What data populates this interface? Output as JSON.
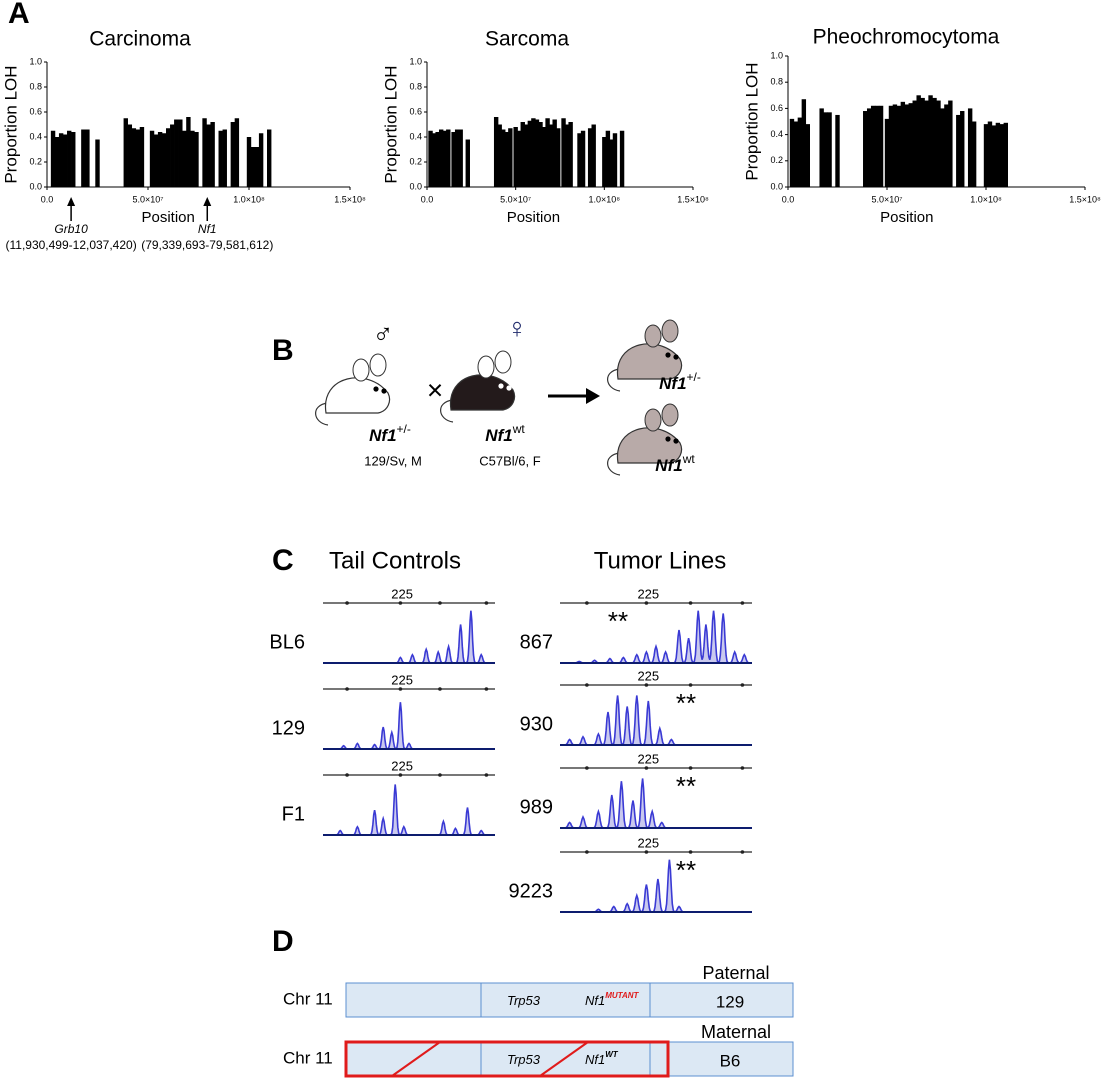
{
  "panel_labels": [
    "A",
    "B",
    "C",
    "D"
  ],
  "chart_data": [
    {
      "type": "bar",
      "title": "Carcinoma",
      "xlabel": "Position",
      "ylabel": "Proportion LOH",
      "color": "#000000",
      "x": [
        3000000,
        5000000,
        7000000,
        9000000,
        11000000,
        13000000,
        18000000,
        20000000,
        25000000,
        39000000,
        41000000,
        43000000,
        45000000,
        47000000,
        52000000,
        54000000,
        56000000,
        58000000,
        60000000,
        62000000,
        64000000,
        66000000,
        68000000,
        70000000,
        72000000,
        74000000,
        78000000,
        80000000,
        82000000,
        86000000,
        88000000,
        92000000,
        94000000,
        100000000,
        102000000,
        104000000,
        106000000,
        110000000
      ],
      "values": [
        0.45,
        0.4,
        0.43,
        0.42,
        0.45,
        0.44,
        0.46,
        0.46,
        0.38,
        0.55,
        0.5,
        0.47,
        0.46,
        0.48,
        0.45,
        0.42,
        0.44,
        0.43,
        0.47,
        0.5,
        0.54,
        0.54,
        0.45,
        0.56,
        0.45,
        0.44,
        0.55,
        0.5,
        0.52,
        0.45,
        0.46,
        0.52,
        0.55,
        0.4,
        0.32,
        0.32,
        0.43,
        0.46
      ],
      "xlim": [
        0,
        150000000
      ],
      "xticks": [
        {
          "value": 0,
          "label": "0.0"
        },
        {
          "value": 50000000,
          "label": "5.0×10⁷"
        },
        {
          "value": 100000000,
          "label": "1.0×10⁸"
        },
        {
          "value": 150000000,
          "label": "1.5×10⁸"
        }
      ],
      "ylim": [
        0,
        1
      ],
      "yticks": [
        {
          "value": 0,
          "label": "0.0"
        },
        0.2,
        0.4,
        0.6,
        0.8,
        {
          "value": 1,
          "label": "1.0"
        }
      ],
      "annotations": [
        {
          "text": "Grb10",
          "detail": "(11,930,499-12,037,420)",
          "x": 11930499
        },
        {
          "text": "Nf1",
          "detail": "(79,339,693-79,581,612)",
          "x": 79339693
        }
      ]
    },
    {
      "type": "bar",
      "title": "Sarcoma",
      "xlabel": "Position",
      "ylabel": "Proportion LOH",
      "color": "#000000",
      "x": [
        2000000,
        4000000,
        6000000,
        8000000,
        10000000,
        12000000,
        15000000,
        17000000,
        19000000,
        23000000,
        39000000,
        41000000,
        43000000,
        45000000,
        47000000,
        50000000,
        52000000,
        54000000,
        56000000,
        58000000,
        60000000,
        62000000,
        64000000,
        66000000,
        68000000,
        70000000,
        72000000,
        74000000,
        77000000,
        79000000,
        81000000,
        86000000,
        88000000,
        92000000,
        94000000,
        100000000,
        102000000,
        104000000,
        106000000,
        110000000
      ],
      "values": [
        0.45,
        0.43,
        0.44,
        0.46,
        0.45,
        0.46,
        0.44,
        0.46,
        0.46,
        0.38,
        0.56,
        0.5,
        0.46,
        0.44,
        0.47,
        0.48,
        0.45,
        0.52,
        0.5,
        0.53,
        0.55,
        0.54,
        0.52,
        0.48,
        0.55,
        0.5,
        0.54,
        0.47,
        0.55,
        0.5,
        0.52,
        0.43,
        0.45,
        0.47,
        0.5,
        0.4,
        0.45,
        0.38,
        0.43,
        0.45
      ],
      "xlim": [
        0,
        150000000
      ],
      "xticks": [
        {
          "value": 0,
          "label": "0.0"
        },
        {
          "value": 50000000,
          "label": "5.0×10⁷"
        },
        {
          "value": 100000000,
          "label": "1.0×10⁸"
        },
        {
          "value": 150000000,
          "label": "1.5×10⁸"
        }
      ],
      "ylim": [
        0,
        1
      ],
      "yticks": [
        {
          "value": 0,
          "label": "0.0"
        },
        0.2,
        0.4,
        0.6,
        0.8,
        {
          "value": 1,
          "label": "1.0"
        }
      ]
    },
    {
      "type": "bar",
      "title": "Pheochromocytoma",
      "xlabel": "Position",
      "ylabel": "Proportion LOH",
      "color": "#000000",
      "x": [
        2000000,
        4000000,
        6000000,
        8000000,
        10000000,
        17000000,
        19000000,
        21000000,
        25000000,
        39000000,
        41000000,
        43000000,
        45000000,
        47000000,
        50000000,
        52000000,
        54000000,
        56000000,
        58000000,
        60000000,
        62000000,
        64000000,
        66000000,
        68000000,
        70000000,
        72000000,
        74000000,
        76000000,
        78000000,
        80000000,
        82000000,
        86000000,
        88000000,
        92000000,
        94000000,
        100000000,
        102000000,
        104000000,
        106000000,
        108000000,
        110000000
      ],
      "values": [
        0.52,
        0.5,
        0.53,
        0.67,
        0.48,
        0.6,
        0.57,
        0.57,
        0.55,
        0.58,
        0.6,
        0.62,
        0.62,
        0.62,
        0.52,
        0.62,
        0.63,
        0.62,
        0.65,
        0.63,
        0.64,
        0.66,
        0.7,
        0.68,
        0.66,
        0.7,
        0.68,
        0.66,
        0.6,
        0.63,
        0.66,
        0.55,
        0.58,
        0.6,
        0.5,
        0.48,
        0.5,
        0.47,
        0.49,
        0.48,
        0.49
      ],
      "xlim": [
        0,
        150000000
      ],
      "xticks": [
        {
          "value": 0,
          "label": "0.0"
        },
        {
          "value": 50000000,
          "label": "5.0×10⁷"
        },
        {
          "value": 100000000,
          "label": "1.0×10⁸"
        },
        {
          "value": 150000000,
          "label": "1.5×10⁸"
        }
      ],
      "ylim": [
        0,
        1
      ],
      "yticks": [
        {
          "value": 0,
          "label": "0.0"
        },
        0.2,
        0.4,
        0.6,
        0.8,
        {
          "value": 1,
          "label": "1.0"
        }
      ]
    }
  ],
  "panel_b": {
    "cross": "×",
    "parents": [
      {
        "symbol": "♂",
        "gene": "Nf1",
        "allele": "+/-",
        "strain": "129/Sv, M"
      },
      {
        "symbol": "♀",
        "gene": "Nf1",
        "allele": "wt",
        "strain": "C57Bl/6, F"
      }
    ],
    "offspring": [
      {
        "gene": "Nf1",
        "allele": "+/-"
      },
      {
        "gene": "Nf1",
        "allele": "wt"
      }
    ]
  },
  "panel_c": {
    "columns": [
      {
        "title": "Tail Controls",
        "traces": [
          {
            "name": "BL6",
            "marker": "225"
          },
          {
            "name": "129",
            "marker": "225"
          },
          {
            "name": "F1",
            "marker": "225"
          }
        ]
      },
      {
        "title": "Tumor Lines",
        "traces": [
          {
            "name": "867",
            "marker": "225",
            "flag": "**"
          },
          {
            "name": "930",
            "marker": "225",
            "flag": "**"
          },
          {
            "name": "989",
            "marker": "225",
            "flag": "**"
          },
          {
            "name": "9223",
            "marker": "225",
            "flag": "**"
          }
        ]
      }
    ]
  },
  "panel_d": {
    "rows": [
      {
        "chr": "Chr 11",
        "parent": "Paternal",
        "strain": "129",
        "genes": [
          {
            "name": "Trp53"
          },
          {
            "name": "Nf1",
            "sup": "MUTANT"
          }
        ]
      },
      {
        "chr": "Chr 11",
        "parent": "Maternal",
        "strain": "B6",
        "genes": [
          {
            "name": "Trp53"
          },
          {
            "name": "Nf1",
            "sup": "WT"
          }
        ]
      }
    ]
  }
}
